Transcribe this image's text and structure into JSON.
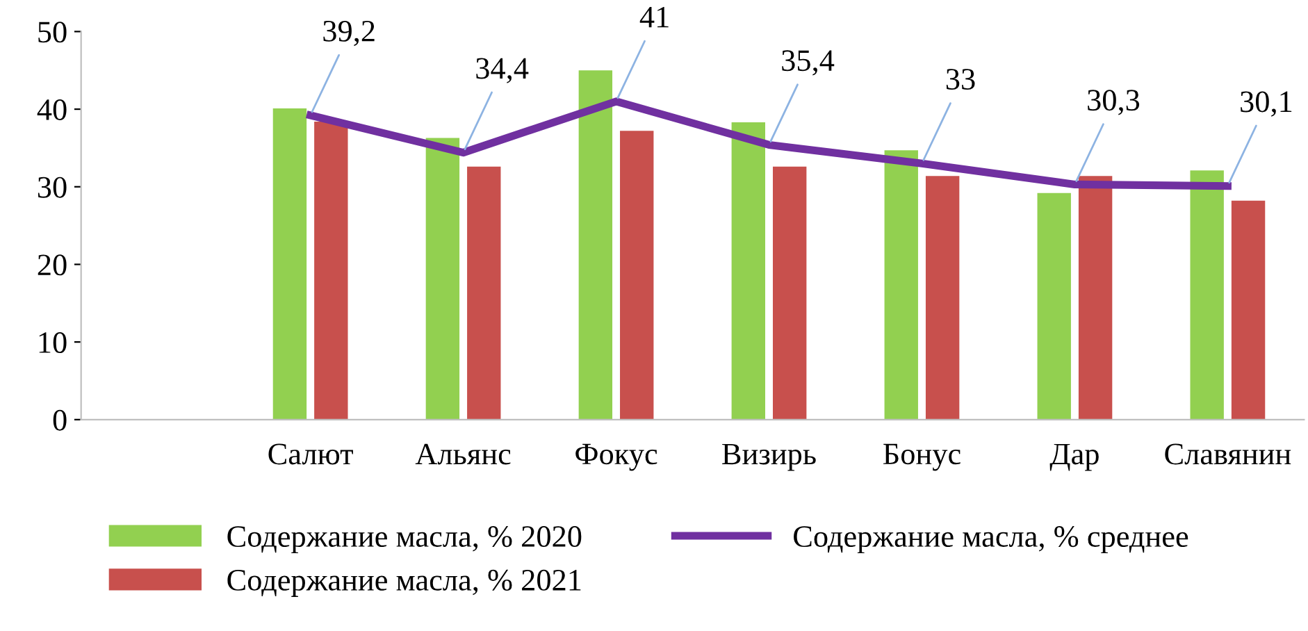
{
  "chart_data": {
    "type": "bar",
    "categories": [
      null,
      "Салют",
      "Альянс",
      "Фокус",
      "Визирь",
      "Бонус",
      "Дар",
      "Славянин"
    ],
    "series": [
      {
        "name": "Содержание масла, % 2020",
        "color": "#92d050",
        "values": [
          null,
          40.1,
          36.3,
          45,
          38.3,
          34.7,
          29.2,
          32.1
        ]
      },
      {
        "name": "Содержание масла, % 2021",
        "color": "#c8504d",
        "values": [
          null,
          38.4,
          32.6,
          37.2,
          32.6,
          31.4,
          31.4,
          28.2
        ]
      },
      {
        "name": "Содержание масла, % среднее",
        "color": "#7030a0",
        "type": "line",
        "values": [
          null,
          39.2,
          34.4,
          41,
          35.4,
          33,
          30.3,
          30.1
        ],
        "value_labels": [
          null,
          "39,2",
          "34,4",
          "41",
          "35,4",
          "33",
          "30,3",
          "30,1"
        ]
      }
    ],
    "ylim": [
      0,
      50
    ],
    "yticks": [
      0,
      10,
      20,
      30,
      40,
      50
    ],
    "grid": false,
    "legend": "bottom",
    "marker": "none",
    "line_style": "solid"
  }
}
